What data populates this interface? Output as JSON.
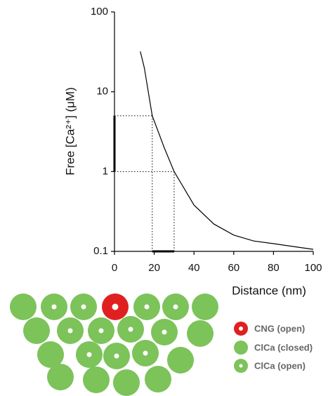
{
  "chart_data": {
    "type": "line",
    "y_label": "Free [Ca²⁺] (μM)",
    "x_label": "Distance (nm)",
    "log_y": true,
    "xlim": [
      0,
      100
    ],
    "xticks": [
      0,
      20,
      40,
      60,
      80,
      100
    ],
    "ylim": [
      0.1,
      100
    ],
    "yticks": [
      0.1,
      1,
      10,
      100
    ],
    "series": [
      {
        "color": "#000000",
        "x": [
          13,
          15,
          19,
          25,
          30,
          40,
          50,
          60,
          70,
          80,
          90,
          100
        ],
        "values": [
          32,
          20,
          5,
          2,
          1,
          0.38,
          0.22,
          0.16,
          0.135,
          0.125,
          0.115,
          0.106
        ]
      }
    ],
    "reference_lines": [
      {
        "x": 19,
        "y": 5
      },
      {
        "x": 30,
        "y": 1
      }
    ]
  },
  "legend": {
    "items": [
      "CNG (open)",
      "ClCa (closed)",
      "ClCa (open)"
    ]
  }
}
